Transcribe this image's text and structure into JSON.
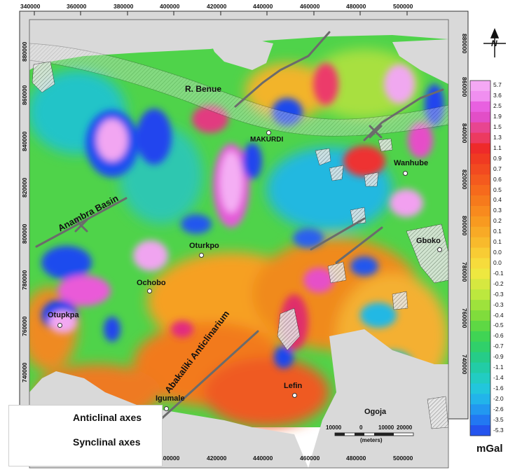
{
  "x_ticks_top": [
    "340000",
    "360000",
    "380000",
    "400000",
    "420000",
    "440000",
    "460000",
    "480000",
    "500000"
  ],
  "x_ticks_bottom": [
    "400000",
    "420000",
    "440000",
    "460000",
    "480000",
    "500000"
  ],
  "y_ticks_left": [
    "880000",
    "860000",
    "840000",
    "820000",
    "800000",
    "780000",
    "760000",
    "740000"
  ],
  "y_ticks_right": [
    "880000",
    "860000",
    "840000",
    "820000",
    "800000",
    "780000",
    "760000",
    "740000"
  ],
  "places": {
    "river": "R. Benue",
    "makurdi": "MAKURDI",
    "wanhube": "Wanhube",
    "gboko": "Gboko",
    "oturkpo": "Oturkpo",
    "ochobo": "Ochobo",
    "otupkpa": "Otupkpa",
    "igumale": "Igumale",
    "lefin": "Lefin",
    "ogoja": "Ogoja"
  },
  "structures": {
    "anambra": "Anambra Basin",
    "abakaliki": "Abakaliki Anticlinarium"
  },
  "legend": {
    "anticlinal": "Anticlinal axes",
    "synclinal": "Synclinal axes"
  },
  "scale_bar": {
    "labels": [
      "10000",
      "0",
      "10000",
      "20000"
    ],
    "unit": "(meters)"
  },
  "colorbar": {
    "unit": "mGal",
    "labels": [
      "5.7",
      "3.6",
      "2.5",
      "1.9",
      "1.5",
      "1.3",
      "1.1",
      "0.9",
      "0.7",
      "0.6",
      "0.5",
      "0.4",
      "0.3",
      "0.2",
      "0.1",
      "0.1",
      "0.0",
      "0.0",
      "-0.1",
      "-0.2",
      "-0.3",
      "-0.3",
      "-0.4",
      "-0.5",
      "-0.6",
      "-0.7",
      "-0.9",
      "-1.1",
      "-1.4",
      "-1.6",
      "-2.0",
      "-2.6",
      "-3.5",
      "-5.3"
    ],
    "colors": [
      "#f4a8f4",
      "#f08ff0",
      "#e860e0",
      "#e24ec7",
      "#e84590",
      "#ec3a60",
      "#ee2a2a",
      "#f03a22",
      "#f24a20",
      "#f45a1e",
      "#f66a1c",
      "#f67a1c",
      "#f88a1e",
      "#f89a20",
      "#f8aa26",
      "#f8ba2c",
      "#f8cc34",
      "#f6dc3c",
      "#eee840",
      "#d6e840",
      "#bce83e",
      "#9ee23c",
      "#80dc3c",
      "#5ed844",
      "#40d454",
      "#30d06a",
      "#26cc88",
      "#22cca6",
      "#22ccc2",
      "#22c6dc",
      "#22b4ea",
      "#2298f0",
      "#2278f2",
      "#2454ee"
    ]
  },
  "north_symbol": "N"
}
